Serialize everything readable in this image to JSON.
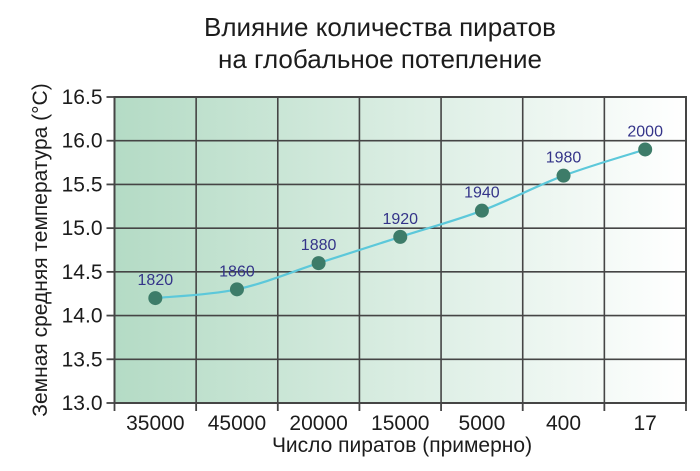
{
  "header": {
    "title_line1": "Влияние количества пиратов",
    "title_line2": "на глобальное потепление"
  },
  "chart_data": {
    "type": "line",
    "title": "Влияние количества пиратов на глобальное потепление",
    "xlabel": "Число пиратов (примерно)",
    "ylabel": "Земная средняя температура (°C)",
    "categories": [
      "35000",
      "45000",
      "20000",
      "15000",
      "5000",
      "400",
      "17"
    ],
    "series": [
      {
        "name": "Земная средняя температура",
        "values": [
          14.2,
          14.3,
          14.6,
          14.9,
          15.2,
          15.6,
          15.9
        ],
        "point_labels": [
          "1820",
          "1860",
          "1880",
          "1920",
          "1940",
          "1980",
          "2000"
        ]
      }
    ],
    "ylim": [
      13.0,
      16.5
    ],
    "ytick_step": 0.5,
    "grid": true,
    "legend": false,
    "colors": {
      "plot_bg_left": "#b4dbc5",
      "plot_bg_right": "#ffffff",
      "grid": "#454545",
      "line": "#5cc8da",
      "marker": "#3d7c69",
      "point_label": "#343489",
      "axis_text": "#1c1c1c"
    }
  }
}
